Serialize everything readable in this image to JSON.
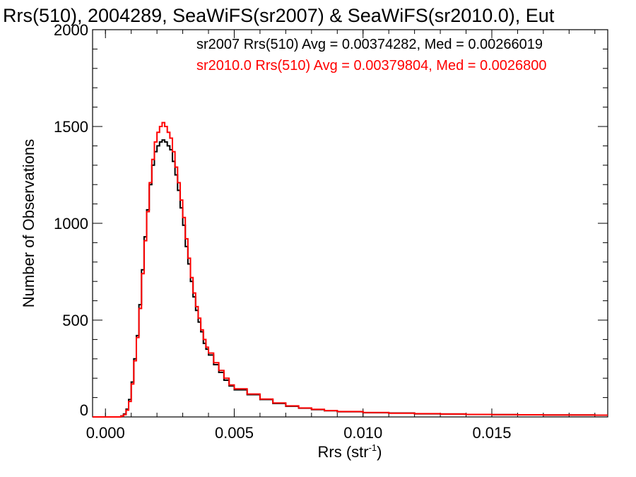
{
  "chart_data": {
    "type": "line",
    "title": "Rrs(510), 2004289, SeaWiFS(sr2007) & SeaWiFS(sr2010.0), Eut",
    "xlabel": "Rrs (str",
    "xlabel_sup": "-1",
    "xlabel_close": ")",
    "ylabel": "Number of Observations",
    "xlim": [
      -0.0005,
      0.0195
    ],
    "ylim": [
      0,
      2000
    ],
    "xticks": [
      0.0,
      0.005,
      0.01,
      0.015
    ],
    "xtick_labels": [
      "0.000",
      "0.005",
      "0.010",
      "0.015"
    ],
    "yticks": [
      0,
      500,
      1000,
      1500,
      2000
    ],
    "ytick_labels": [
      "0",
      "500",
      "1000",
      "1500",
      "2000"
    ],
    "grid": false,
    "annotations": [
      {
        "text": "sr2007 Rrs(510) Avg = 0.00374282, Med = 0.00266019",
        "color": "#000000"
      },
      {
        "text": "sr2010.0 Rrs(510) Avg = 0.00379804, Med = 0.0026800",
        "color": "#ff0000"
      }
    ],
    "series": [
      {
        "name": "sr2007",
        "color": "#000000",
        "x": [
          -0.0005,
          0.0,
          0.0004,
          0.0006,
          0.0007,
          0.0008,
          0.0009,
          0.001,
          0.0011,
          0.0012,
          0.0013,
          0.0014,
          0.0015,
          0.0016,
          0.0017,
          0.0018,
          0.0019,
          0.002,
          0.0021,
          0.0022,
          0.0023,
          0.0024,
          0.0025,
          0.0026,
          0.0027,
          0.0028,
          0.0029,
          0.003,
          0.0031,
          0.0032,
          0.0033,
          0.0034,
          0.0035,
          0.0036,
          0.0037,
          0.0038,
          0.0039,
          0.004,
          0.0042,
          0.0044,
          0.0046,
          0.0048,
          0.005,
          0.0055,
          0.006,
          0.0065,
          0.007,
          0.0075,
          0.008,
          0.0085,
          0.009,
          0.01,
          0.011,
          0.012,
          0.013,
          0.014,
          0.015,
          0.016,
          0.017,
          0.018,
          0.019,
          0.0195
        ],
        "y": [
          0,
          0,
          0,
          5,
          15,
          40,
          90,
          180,
          300,
          420,
          580,
          760,
          930,
          1070,
          1200,
          1300,
          1370,
          1400,
          1420,
          1430,
          1420,
          1400,
          1380,
          1320,
          1250,
          1170,
          1080,
          990,
          880,
          790,
          700,
          620,
          550,
          490,
          440,
          380,
          350,
          320,
          270,
          230,
          190,
          160,
          140,
          115,
          90,
          70,
          55,
          45,
          38,
          32,
          27,
          22,
          20,
          16,
          15,
          13,
          12,
          11,
          10,
          10,
          9,
          9
        ]
      },
      {
        "name": "sr2010.0",
        "color": "#ff0000",
        "x": [
          -0.0005,
          0.0,
          0.0004,
          0.0006,
          0.0007,
          0.0008,
          0.0009,
          0.001,
          0.0011,
          0.0012,
          0.0013,
          0.0014,
          0.0015,
          0.0016,
          0.0017,
          0.0018,
          0.0019,
          0.002,
          0.0021,
          0.0022,
          0.0023,
          0.0024,
          0.0025,
          0.0026,
          0.0027,
          0.0028,
          0.0029,
          0.003,
          0.0031,
          0.0032,
          0.0033,
          0.0034,
          0.0035,
          0.0036,
          0.0037,
          0.0038,
          0.0039,
          0.004,
          0.0042,
          0.0044,
          0.0046,
          0.0048,
          0.005,
          0.0055,
          0.006,
          0.0065,
          0.007,
          0.0075,
          0.008,
          0.0085,
          0.009,
          0.01,
          0.011,
          0.012,
          0.013,
          0.014,
          0.015,
          0.016,
          0.017,
          0.018,
          0.019,
          0.0195
        ],
        "y": [
          0,
          0,
          0,
          4,
          12,
          35,
          80,
          170,
          290,
          410,
          560,
          740,
          910,
          1060,
          1210,
          1330,
          1420,
          1470,
          1500,
          1520,
          1500,
          1470,
          1440,
          1370,
          1290,
          1210,
          1120,
          1030,
          920,
          820,
          720,
          640,
          570,
          510,
          450,
          400,
          360,
          330,
          280,
          240,
          200,
          165,
          145,
          118,
          92,
          72,
          57,
          46,
          39,
          33,
          28,
          23,
          19,
          17,
          15,
          13,
          12,
          11,
          10,
          10,
          9,
          9
        ]
      }
    ]
  }
}
